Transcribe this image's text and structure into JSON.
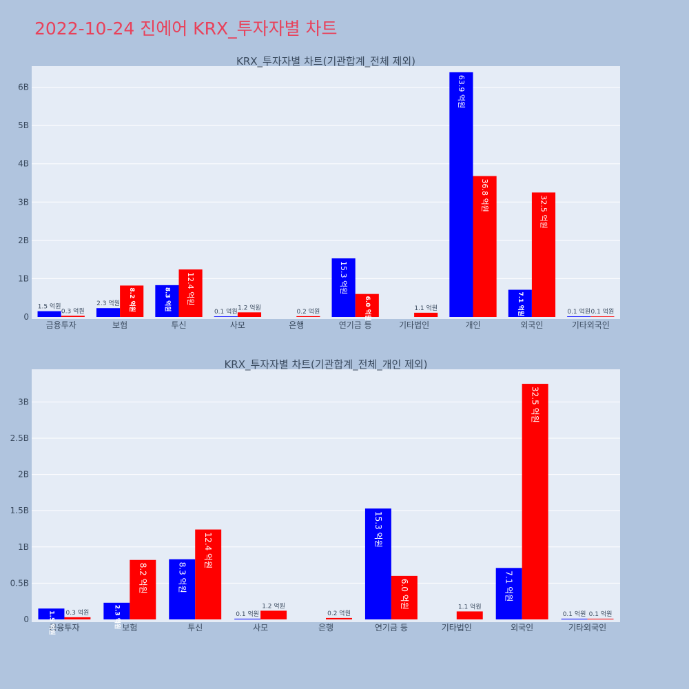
{
  "page": {
    "title": "2022-10-24 진에어 KRX_투자자별 차트"
  },
  "colors": {
    "background": "#b0c4de",
    "plot_bg": "#e5ecf6",
    "gridline": "#ffffff",
    "title": "#e8415a",
    "buy": "#0000ff",
    "sell": "#ff0000"
  },
  "chart_data": [
    {
      "type": "bar",
      "title": "KRX_투자자별 차트(기관합계_전체 제외)",
      "categories": [
        "금융투자",
        "보험",
        "투신",
        "사모",
        "은행",
        "연기금 등",
        "기타법인",
        "개인",
        "외국인",
        "기타외국인"
      ],
      "yticks": [
        {
          "value": 0,
          "label": "0"
        },
        {
          "value": 1000000000,
          "label": "1B"
        },
        {
          "value": 2000000000,
          "label": "2B"
        },
        {
          "value": 3000000000,
          "label": "3B"
        },
        {
          "value": 4000000000,
          "label": "4B"
        },
        {
          "value": 5000000000,
          "label": "5B"
        },
        {
          "value": 6000000000,
          "label": "6B"
        }
      ],
      "ylim": [
        0,
        6550000000
      ],
      "grid": true,
      "series": [
        {
          "color": "#0000ff",
          "values": [
            150000000,
            230000000,
            830000000,
            10000000,
            0,
            1530000000,
            0,
            6390000000,
            710000000,
            10000000
          ],
          "labels": [
            "1.5 억원",
            "2.3 억원",
            "8.3 억원",
            "0.1 억원",
            "",
            "15.3 억원",
            "",
            "63.9 억원",
            "7.1 억원",
            "0.1 억원"
          ]
        },
        {
          "color": "#ff0000",
          "values": [
            30000000,
            820000000,
            1240000000,
            120000000,
            20000000,
            600000000,
            110000000,
            3680000000,
            3250000000,
            10000000
          ],
          "labels": [
            "0.3 억원",
            "8.2 억원",
            "12.4 억원",
            "1.2 억원",
            "0.2 억원",
            "6.0 억원",
            "1.1 억원",
            "36.8 억원",
            "32.5 억원",
            "0.1 억원"
          ]
        }
      ]
    },
    {
      "type": "bar",
      "title": "KRX_투자자별 차트(기관합계_전체_개인 제외)",
      "categories": [
        "금융투자",
        "보험",
        "투신",
        "사모",
        "은행",
        "연기금 등",
        "기타법인",
        "외국인",
        "기타외국인"
      ],
      "yticks": [
        {
          "value": 0,
          "label": "0"
        },
        {
          "value": 500000000,
          "label": "0.5B"
        },
        {
          "value": 1000000000,
          "label": "1B"
        },
        {
          "value": 1500000000,
          "label": "1.5B"
        },
        {
          "value": 2000000000,
          "label": "2B"
        },
        {
          "value": 2500000000,
          "label": "2.5B"
        },
        {
          "value": 3000000000,
          "label": "3B"
        }
      ],
      "ylim": [
        0,
        3450000000
      ],
      "grid": true,
      "series": [
        {
          "color": "#0000ff",
          "values": [
            150000000,
            230000000,
            830000000,
            10000000,
            0,
            1530000000,
            0,
            710000000,
            10000000
          ],
          "labels": [
            "1.5 억원",
            "2.3 억원",
            "8.3 억원",
            "0.1 억원",
            "",
            "15.3 억원",
            "",
            "7.1 억원",
            "0.1 억원"
          ]
        },
        {
          "color": "#ff0000",
          "values": [
            30000000,
            820000000,
            1240000000,
            120000000,
            20000000,
            600000000,
            110000000,
            3250000000,
            10000000
          ],
          "labels": [
            "0.3 억원",
            "8.2 억원",
            "12.4 억원",
            "1.2 억원",
            "0.2 억원",
            "6.0 억원",
            "1.1 억원",
            "32.5 억원",
            "0.1 억원"
          ]
        }
      ]
    }
  ]
}
